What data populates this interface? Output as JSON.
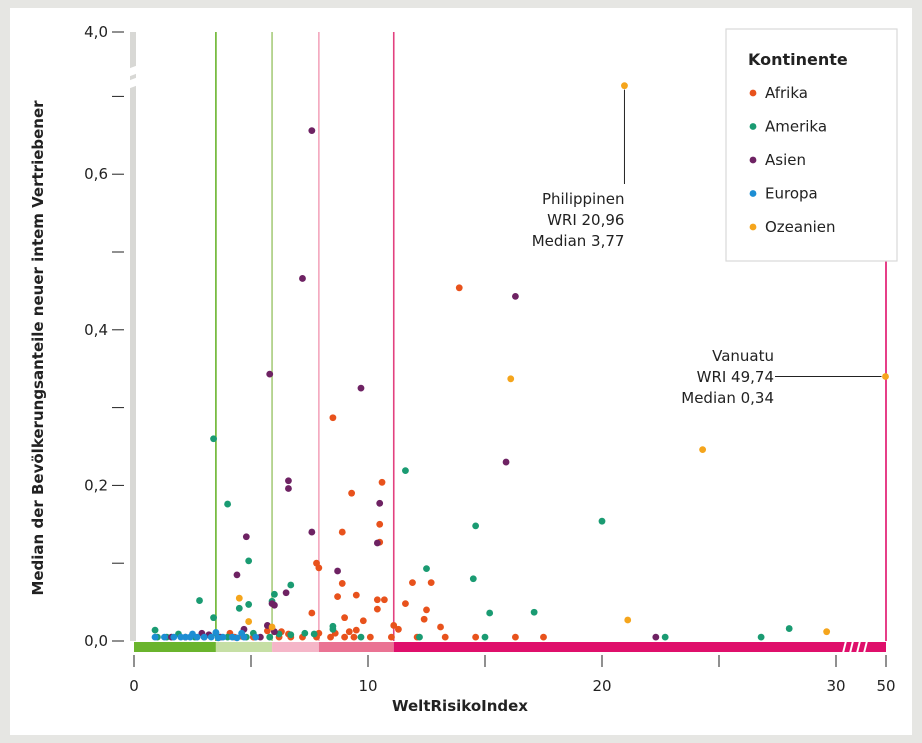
{
  "chart_data": {
    "type": "scatter",
    "xlabel": "WeltRisikoIndex",
    "ylabel": "Median der Bevölkerungsanteile neuer intem Vertriebener",
    "xlim": [
      0,
      32.5
    ],
    "ylim": [
      0,
      0.77
    ],
    "x_axis_break": {
      "after": 30,
      "resumes_at": 50
    },
    "y_axis_break": {
      "after": 0.72,
      "resumes_at": 3.9
    },
    "x_ticks": [
      {
        "value": 0,
        "label": "0"
      },
      {
        "value": 5,
        "label": ""
      },
      {
        "value": 10,
        "label": "10"
      },
      {
        "value": 15,
        "label": ""
      },
      {
        "value": 20,
        "label": "20"
      },
      {
        "value": 25,
        "label": ""
      },
      {
        "value": 30,
        "label": "30"
      },
      {
        "value": 50,
        "label": "50"
      }
    ],
    "y_ticks": [
      {
        "value": 0.0,
        "label": "0,0"
      },
      {
        "value": 0.1,
        "label": ""
      },
      {
        "value": 0.2,
        "label": "0,2"
      },
      {
        "value": 0.3,
        "label": ""
      },
      {
        "value": 0.4,
        "label": "0,4"
      },
      {
        "value": 0.5,
        "label": ""
      },
      {
        "value": 0.6,
        "label": "0,6"
      },
      {
        "value": 0.7,
        "label": ""
      },
      {
        "value": 4.0,
        "label": "4,0"
      }
    ],
    "risk_bands": [
      {
        "from": 0,
        "to": 3.5,
        "color": "#6ab42d"
      },
      {
        "from": 3.5,
        "to": 5.9,
        "color": "#c6dfa5"
      },
      {
        "from": 5.9,
        "to": 7.9,
        "color": "#f5b6c8"
      },
      {
        "from": 7.9,
        "to": 11.1,
        "color": "#ea7393"
      },
      {
        "from": 11.1,
        "to": 50,
        "color": "#df0f6b"
      }
    ],
    "band_lines": [
      {
        "x": 3.5,
        "color": "#6ab42d"
      },
      {
        "x": 5.9,
        "color": "#a7cc7c"
      },
      {
        "x": 7.9,
        "color": "#f3a6bd"
      },
      {
        "x": 11.1,
        "color": "#e2417f"
      },
      {
        "x": 50,
        "color": "#df0f6b"
      }
    ],
    "legend": {
      "title": "Kontinente",
      "position": "top-right",
      "items": [
        {
          "label": "Afrika",
          "color": "#e8521c"
        },
        {
          "label": "Amerika",
          "color": "#1a9b72"
        },
        {
          "label": "Asien",
          "color": "#6e2263"
        },
        {
          "label": "Europa",
          "color": "#1d8ed3"
        },
        {
          "label": "Ozeanien",
          "color": "#f5a51c"
        }
      ]
    },
    "annotations": [
      {
        "lines": [
          "Philippinen",
          "WRI 20,96",
          "Median 3,77"
        ],
        "x": 20.96,
        "y": 3.77
      },
      {
        "lines": [
          "Vanuatu",
          "WRI 49,74",
          "Median 0,34"
        ],
        "x": 49.74,
        "y": 0.34
      }
    ],
    "series": [
      {
        "name": "Afrika",
        "color": "#e8521c",
        "points": [
          [
            13.9,
            0.454
          ],
          [
            8.5,
            0.287
          ],
          [
            9.3,
            0.19
          ],
          [
            10.6,
            0.204
          ],
          [
            10.5,
            0.15
          ],
          [
            8.9,
            0.14
          ],
          [
            10.5,
            0.127
          ],
          [
            7.8,
            0.1
          ],
          [
            7.9,
            0.094
          ],
          [
            12.7,
            0.075
          ],
          [
            11.9,
            0.075
          ],
          [
            8.9,
            0.074
          ],
          [
            9.5,
            0.059
          ],
          [
            8.7,
            0.057
          ],
          [
            10.7,
            0.053
          ],
          [
            10.4,
            0.053
          ],
          [
            11.6,
            0.048
          ],
          [
            12.5,
            0.04
          ],
          [
            10.4,
            0.041
          ],
          [
            7.6,
            0.036
          ],
          [
            9.0,
            0.03
          ],
          [
            12.4,
            0.028
          ],
          [
            9.8,
            0.026
          ],
          [
            11.1,
            0.02
          ],
          [
            13.1,
            0.018
          ],
          [
            11.3,
            0.015
          ],
          [
            9.5,
            0.014
          ],
          [
            9.2,
            0.012
          ],
          [
            8.6,
            0.01
          ],
          [
            7.9,
            0.01
          ],
          [
            6.3,
            0.012
          ],
          [
            6.6,
            0.009
          ],
          [
            5.7,
            0.013
          ],
          [
            4.1,
            0.01
          ],
          [
            4.6,
            0.006
          ],
          [
            14.6,
            0.005
          ],
          [
            16.3,
            0.005
          ],
          [
            17.5,
            0.005
          ],
          [
            13.3,
            0.005
          ],
          [
            12.1,
            0.005
          ],
          [
            11.0,
            0.005
          ],
          [
            10.1,
            0.005
          ],
          [
            9.4,
            0.005
          ],
          [
            9.0,
            0.005
          ],
          [
            8.4,
            0.005
          ],
          [
            7.8,
            0.005
          ],
          [
            7.2,
            0.005
          ],
          [
            6.7,
            0.005
          ],
          [
            6.2,
            0.005
          ],
          [
            5.1,
            0.005
          ],
          [
            4.3,
            0.005
          ]
        ]
      },
      {
        "name": "Amerika",
        "color": "#1a9b72",
        "points": [
          [
            3.4,
            0.26
          ],
          [
            11.6,
            0.219
          ],
          [
            4.0,
            0.176
          ],
          [
            14.6,
            0.148
          ],
          [
            20.0,
            0.154
          ],
          [
            4.9,
            0.103
          ],
          [
            12.5,
            0.093
          ],
          [
            14.5,
            0.08
          ],
          [
            6.7,
            0.072
          ],
          [
            6.0,
            0.06
          ],
          [
            2.8,
            0.052
          ],
          [
            5.9,
            0.051
          ],
          [
            4.9,
            0.047
          ],
          [
            4.5,
            0.042
          ],
          [
            15.2,
            0.036
          ],
          [
            17.1,
            0.037
          ],
          [
            8.5,
            0.019
          ],
          [
            8.5,
            0.015
          ],
          [
            28.0,
            0.016
          ],
          [
            0.9,
            0.014
          ],
          [
            1.9,
            0.009
          ],
          [
            3.5,
            0.01
          ],
          [
            5.1,
            0.01
          ],
          [
            6.2,
            0.009
          ],
          [
            6.7,
            0.008
          ],
          [
            7.3,
            0.01
          ],
          [
            7.7,
            0.009
          ],
          [
            26.8,
            0.005
          ],
          [
            22.7,
            0.005
          ],
          [
            15.0,
            0.005
          ],
          [
            12.2,
            0.005
          ],
          [
            9.7,
            0.005
          ],
          [
            5.8,
            0.005
          ],
          [
            4.8,
            0.005
          ],
          [
            4.0,
            0.005
          ],
          [
            2.6,
            0.005
          ],
          [
            1.4,
            0.005
          ],
          [
            1.0,
            0.005
          ],
          [
            3.6,
            0.005
          ],
          [
            3.4,
            0.03
          ]
        ]
      },
      {
        "name": "Asien",
        "color": "#6e2263",
        "points": [
          [
            7.6,
            0.656
          ],
          [
            7.2,
            0.466
          ],
          [
            16.3,
            0.443
          ],
          [
            9.7,
            0.325
          ],
          [
            5.8,
            0.343
          ],
          [
            15.9,
            0.23
          ],
          [
            6.6,
            0.206
          ],
          [
            6.6,
            0.196
          ],
          [
            7.6,
            0.14
          ],
          [
            10.5,
            0.177
          ],
          [
            4.8,
            0.134
          ],
          [
            10.4,
            0.126
          ],
          [
            8.7,
            0.09
          ],
          [
            4.4,
            0.085
          ],
          [
            6.5,
            0.062
          ],
          [
            5.9,
            0.048
          ],
          [
            6.0,
            0.046
          ],
          [
            5.7,
            0.02
          ],
          [
            4.7,
            0.015
          ],
          [
            2.9,
            0.01
          ],
          [
            3.2,
            0.008
          ],
          [
            6.0,
            0.012
          ],
          [
            22.3,
            0.005
          ],
          [
            3.7,
            0.005
          ],
          [
            2.2,
            0.005
          ],
          [
            1.6,
            0.005
          ],
          [
            5.4,
            0.005
          ],
          [
            3.0,
            0.005
          ]
        ]
      },
      {
        "name": "Europa",
        "color": "#1d8ed3",
        "points": [
          [
            2.5,
            0.009
          ],
          [
            3.5,
            0.011
          ],
          [
            4.6,
            0.01
          ],
          [
            0.9,
            0.005
          ],
          [
            1.3,
            0.005
          ],
          [
            1.7,
            0.005
          ],
          [
            2.0,
            0.005
          ],
          [
            2.4,
            0.005
          ],
          [
            2.7,
            0.005
          ],
          [
            3.0,
            0.005
          ],
          [
            3.3,
            0.005
          ],
          [
            3.8,
            0.005
          ],
          [
            4.2,
            0.005
          ],
          [
            4.7,
            0.005
          ],
          [
            5.2,
            0.005
          ],
          [
            2.2,
            0.005
          ],
          [
            3.6,
            0.004
          ],
          [
            4.4,
            0.004
          ]
        ]
      },
      {
        "name": "Ozeanien",
        "color": "#f5a51c",
        "points": [
          [
            16.1,
            0.337
          ],
          [
            24.3,
            0.246
          ],
          [
            21.1,
            0.027
          ],
          [
            29.6,
            0.012
          ],
          [
            4.5,
            0.055
          ],
          [
            4.9,
            0.025
          ],
          [
            5.9,
            0.018
          ],
          [
            49.74,
            0.34
          ],
          [
            20.96,
            3.77
          ]
        ]
      }
    ]
  }
}
